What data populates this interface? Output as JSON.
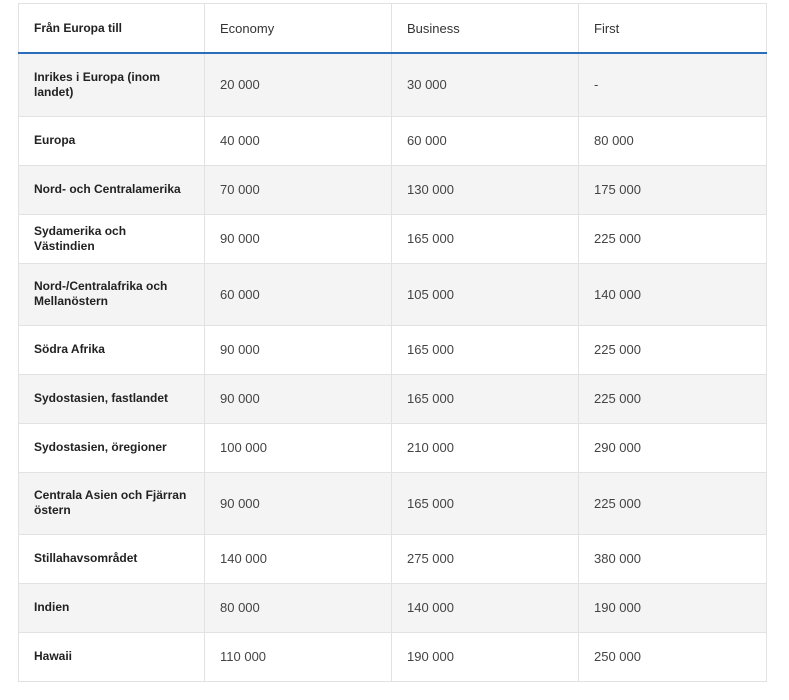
{
  "table": {
    "header": [
      "Från Europa till",
      "Economy",
      "Business",
      "First"
    ],
    "rows": [
      [
        "Inrikes i Europa (inom landet)",
        "20 000",
        "30 000",
        "-"
      ],
      [
        "Europa",
        "40 000",
        "60 000",
        "80 000"
      ],
      [
        "Nord- och Centralamerika",
        "70 000",
        "130 000",
        "175 000"
      ],
      [
        "Sydamerika och Västindien",
        "90 000",
        "165 000",
        "225 000"
      ],
      [
        "Nord-/Centralafrika och Mellanöstern",
        "60 000",
        "105 000",
        "140 000"
      ],
      [
        "Södra Afrika",
        "90 000",
        "165 000",
        "225 000"
      ],
      [
        "Sydostasien, fastlandet",
        "90 000",
        "165 000",
        "225 000"
      ],
      [
        "Sydostasien, öregioner",
        "100 000",
        "210 000",
        "290 000"
      ],
      [
        "Centrala Asien och Fjärran östern",
        "90 000",
        "165 000",
        "225 000"
      ],
      [
        "Stillahavsområdet",
        "140 000",
        "275 000",
        "380 000"
      ],
      [
        "Indien",
        "80 000",
        "140 000",
        "190 000"
      ],
      [
        "Hawaii",
        "110 000",
        "190 000",
        "250 000"
      ]
    ]
  }
}
